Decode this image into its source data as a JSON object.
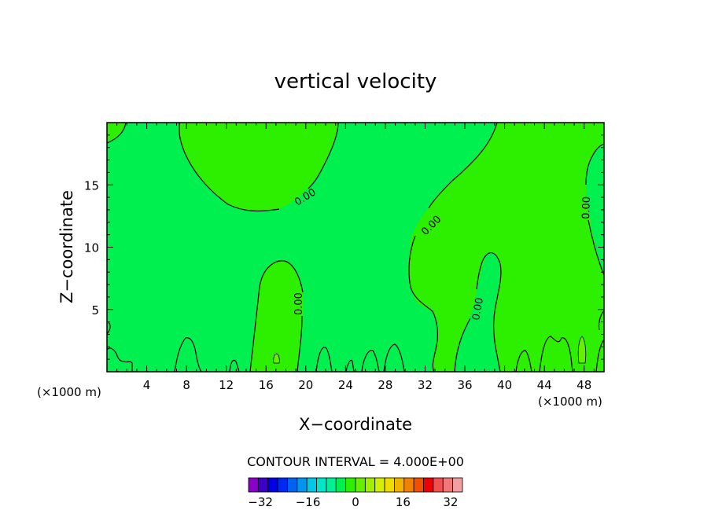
{
  "chart_data": {
    "type": "heatmap",
    "title": "vertical velocity",
    "xlabel": "X−coordinate",
    "ylabel": "Z−coordinate",
    "x_unit_left": "(×1000 m)",
    "x_unit_right": "(×1000 m)",
    "xlim": [
      0,
      50
    ],
    "ylim": [
      0,
      20
    ],
    "x_ticks": [
      "4",
      "8",
      "12",
      "16",
      "20",
      "24",
      "28",
      "32",
      "36",
      "40",
      "44",
      "48"
    ],
    "y_ticks": [
      "5",
      "10",
      "15"
    ],
    "contour_interval_text": "CONTOUR INTERVAL = 4.000E+00",
    "contour_label": "0.00",
    "legend_ticks": [
      "−32",
      "−16",
      "0",
      "16",
      "32"
    ],
    "colorbar_min": -36,
    "colorbar_max": 36,
    "colorbar_step": 4,
    "colorbar_colors": [
      "#8a00c8",
      "#3c00c8",
      "#0000e6",
      "#0028f0",
      "#0064f0",
      "#0096f0",
      "#00c8e6",
      "#00e6c8",
      "#00f096",
      "#00f050",
      "#2cf000",
      "#64f000",
      "#a0f000",
      "#d2f000",
      "#f0dc00",
      "#f0b400",
      "#f08200",
      "#f05000",
      "#f00000",
      "#f05050",
      "#f07878",
      "#f0a0a0"
    ],
    "field_colors": {
      "zero_to_neg4": "#00f050",
      "zero_to_4": "#2cf000",
      "positive_spot": "#64f000"
    },
    "grid": false
  }
}
